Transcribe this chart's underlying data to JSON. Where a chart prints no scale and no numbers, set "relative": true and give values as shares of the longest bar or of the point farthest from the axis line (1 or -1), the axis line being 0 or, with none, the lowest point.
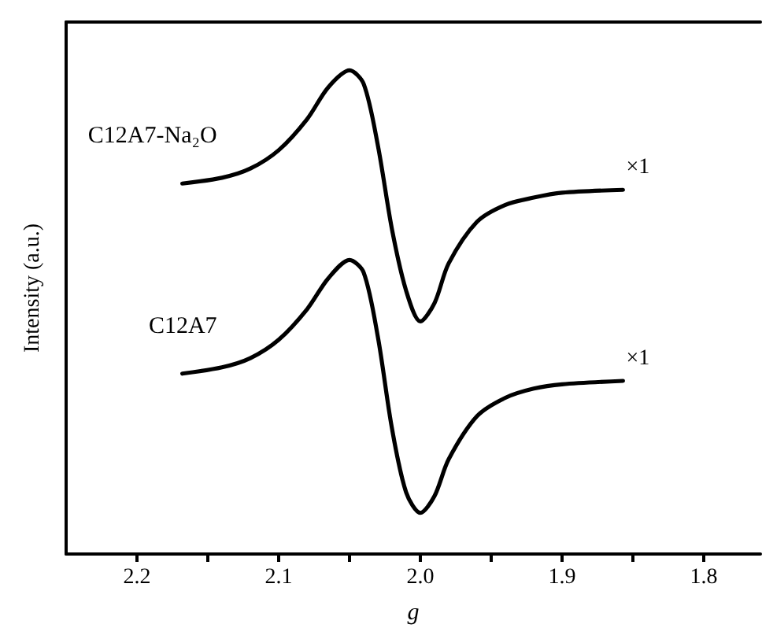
{
  "chart_data": {
    "type": "line",
    "relative": true,
    "xlabel": "g",
    "ylabel": "Intensity (a.u.)",
    "xlim": [
      2.25,
      1.76
    ],
    "xticks": [
      2.2,
      {
        "value": 2.15,
        "label": null
      },
      2.1,
      {
        "value": 2.05,
        "label": null
      },
      "2.0",
      {
        "value": 1.95,
        "label": null
      },
      1.9,
      {
        "value": 1.85,
        "label": null
      },
      1.8
    ],
    "tick_labels": "x",
    "marker": "none",
    "line_style": "solid",
    "grid": false,
    "legend": false,
    "series": [
      {
        "name": "C12A7-Na₂O",
        "color": "#000000",
        "x": [
          2.168,
          2.14,
          2.12,
          2.1,
          2.08,
          2.065,
          2.05,
          2.04,
          2.03,
          2.02,
          2.01,
          2.0,
          1.99,
          1.98,
          1.96,
          1.94,
          1.92,
          1.9,
          1.857
        ],
        "values": [
          0.766,
          0.778,
          0.797,
          0.835,
          0.899,
          0.965,
          1.0,
          0.972,
          0.845,
          0.671,
          0.544,
          0.481,
          0.519,
          0.601,
          0.687,
          0.722,
          0.737,
          0.747,
          0.753
        ]
      },
      {
        "name": "C12A7",
        "color": "#000000",
        "x": [
          2.168,
          2.14,
          2.12,
          2.1,
          2.08,
          2.065,
          2.05,
          2.04,
          2.03,
          2.02,
          2.01,
          2.0,
          1.99,
          1.98,
          1.96,
          1.94,
          1.92,
          1.9,
          1.857
        ],
        "values": [
          0.373,
          0.386,
          0.405,
          0.443,
          0.506,
          0.57,
          0.608,
          0.582,
          0.449,
          0.259,
          0.127,
          0.085,
          0.12,
          0.196,
          0.285,
          0.323,
          0.342,
          0.351,
          0.358
        ]
      }
    ],
    "annotations": [
      "×1",
      "×1"
    ]
  }
}
